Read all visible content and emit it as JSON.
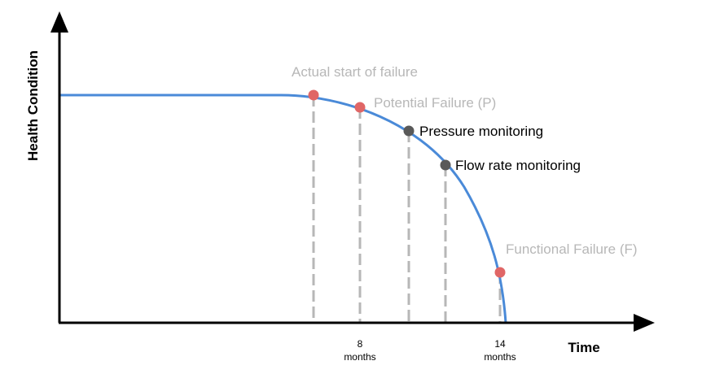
{
  "axes": {
    "y_title": "Health Condition",
    "x_title": "Time"
  },
  "points": [
    {
      "id": "actual-start",
      "label": "Actual start of failure",
      "kind": "failure",
      "t": 5.2
    },
    {
      "id": "potential-failure",
      "label": "Potential Failure (P)",
      "kind": "failure",
      "t": 8
    },
    {
      "id": "pressure-monitoring",
      "label": "Pressure monitoring",
      "kind": "monitoring",
      "t": 10.6
    },
    {
      "id": "flow-rate-monitoring",
      "label": "Flow rate monitoring",
      "kind": "monitoring",
      "t": 12.3
    },
    {
      "id": "functional-failure",
      "label": "Functional Failure (F)",
      "kind": "failure",
      "t": 14
    }
  ],
  "ticks": [
    {
      "value": "8",
      "unit": "months"
    },
    {
      "value": "14",
      "unit": "months"
    }
  ],
  "colors": {
    "curve": "#4a8ad8",
    "failure_point": "#e06666",
    "monitoring_point": "#595959",
    "failure_label": "#b7b7b7",
    "monitoring_label": "#000000",
    "dashed_line": "#b7b7b7",
    "axis": "#000000"
  }
}
